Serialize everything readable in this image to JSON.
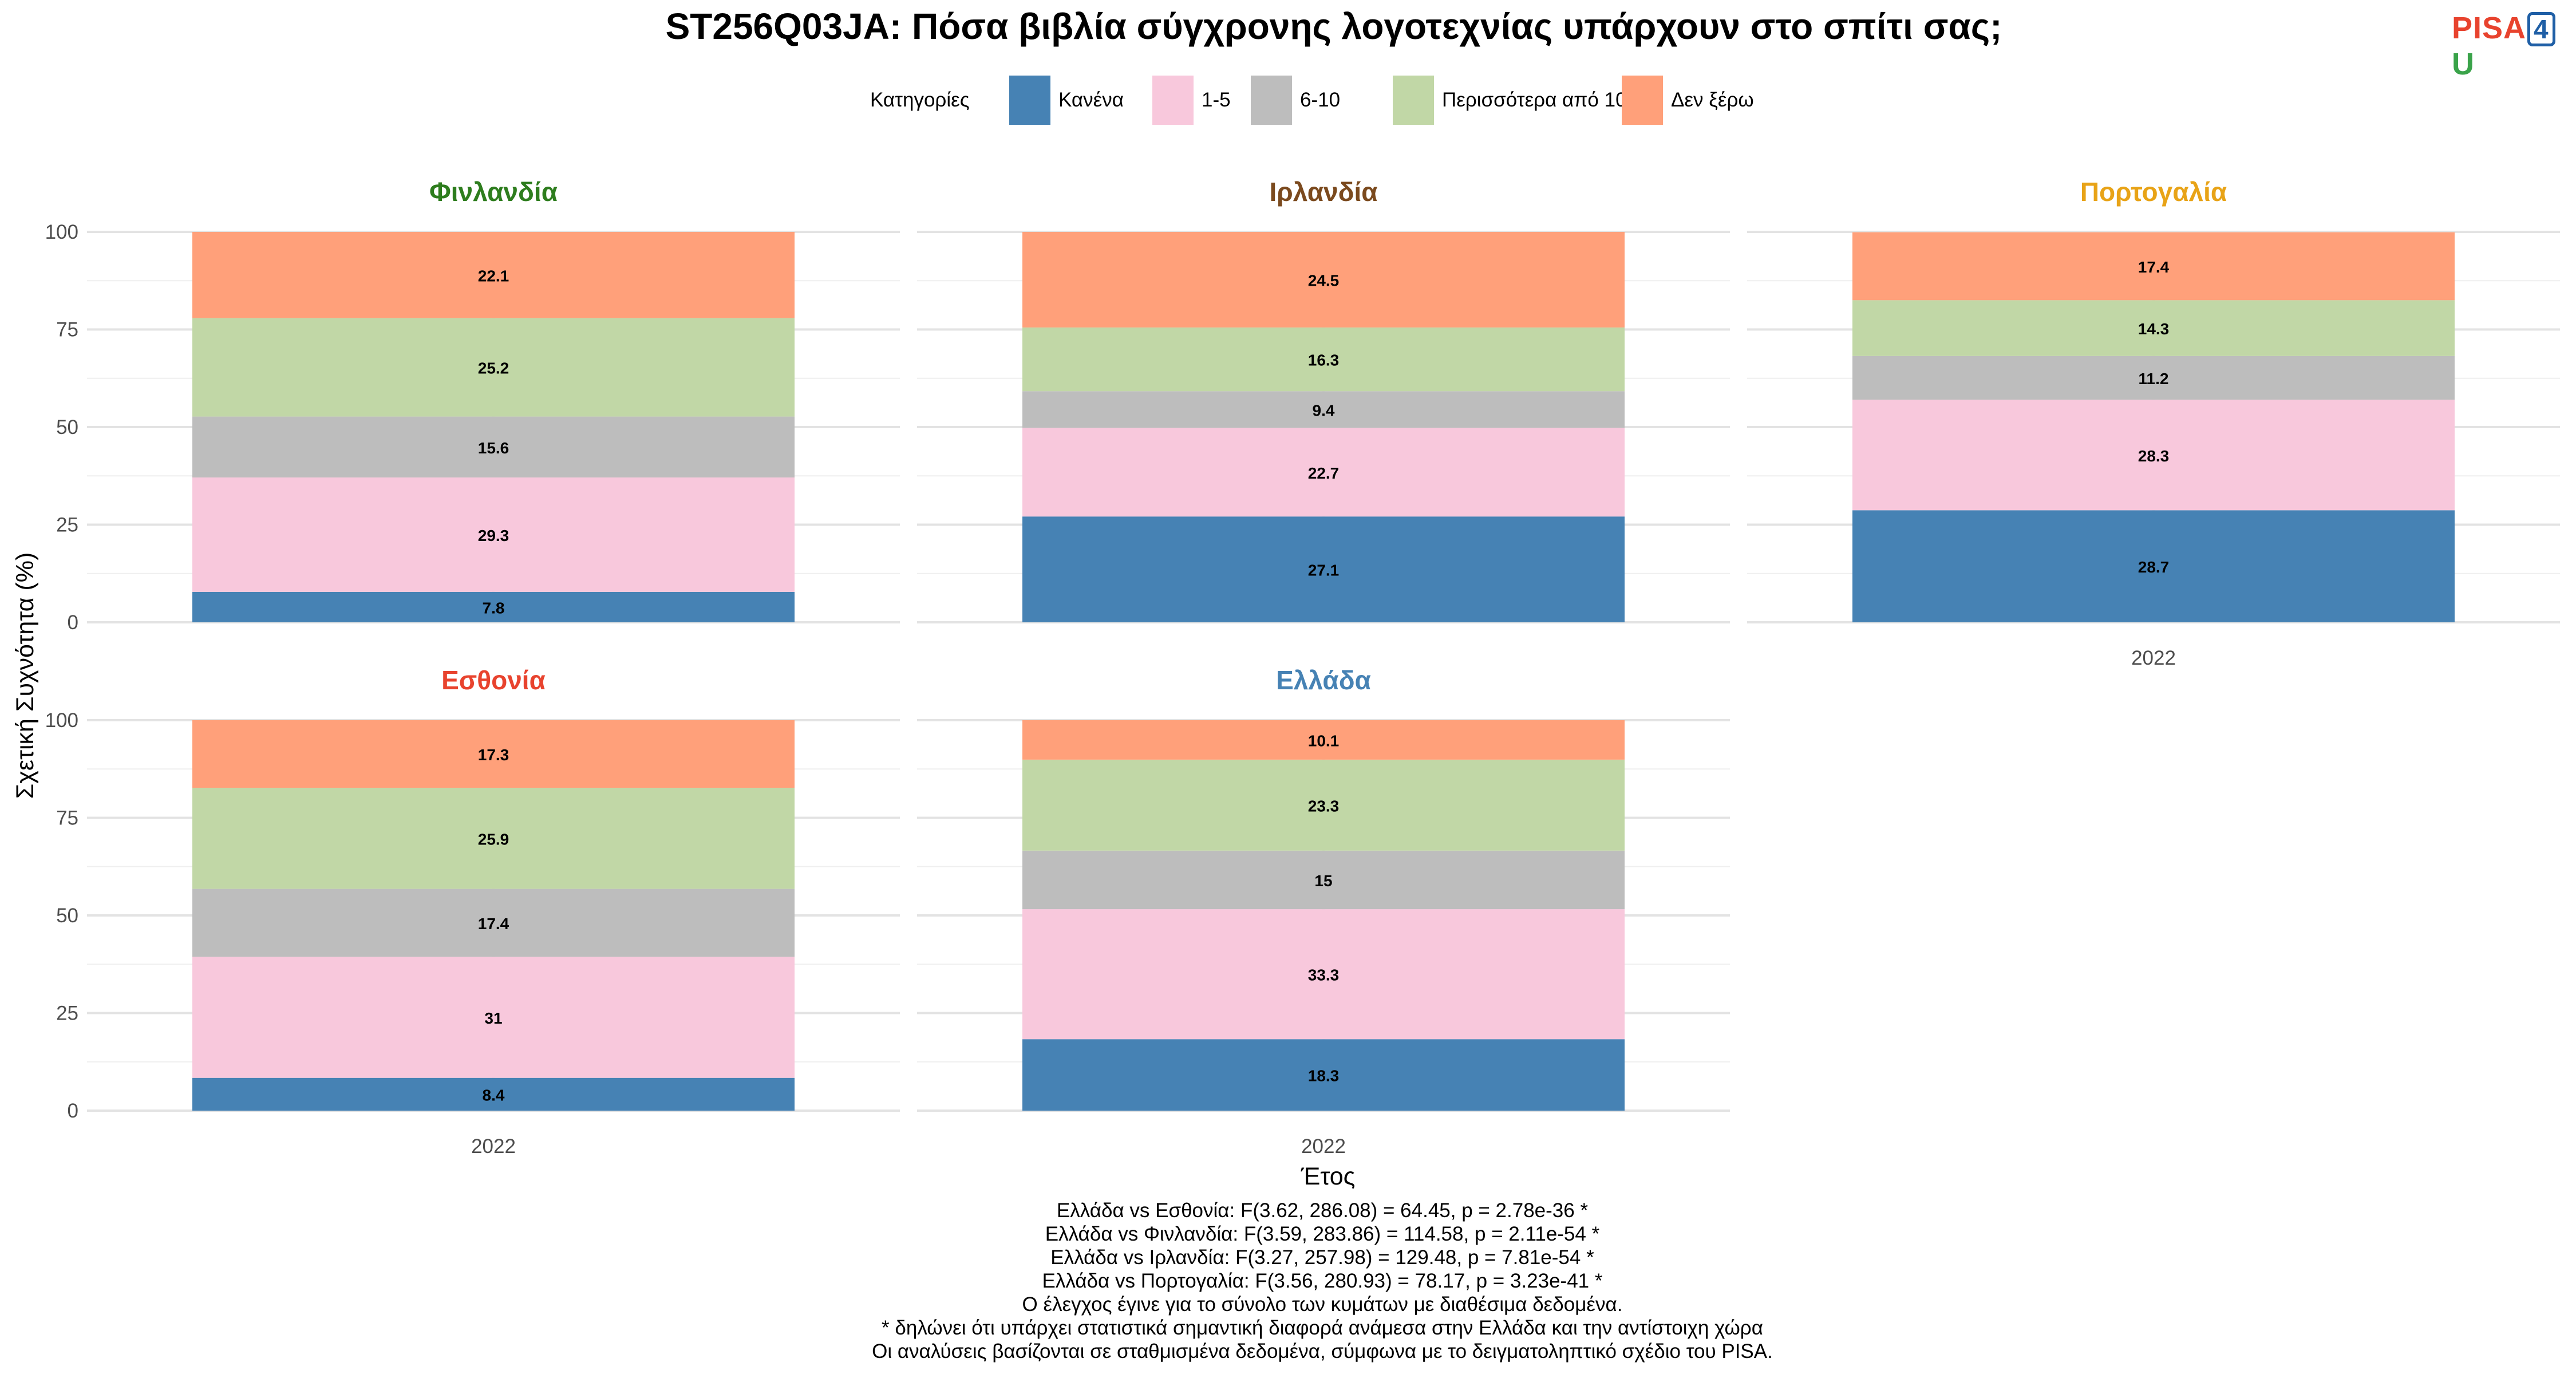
{
  "title": "ST256Q03JA: Πόσα βιβλία σύγχρονης λογοτεχνίας υπάρχουν στο σπίτι σας;",
  "logo": {
    "part1": "PISA",
    "part2": "4",
    "part3": "U"
  },
  "legend": {
    "title": "Κατηγορίες",
    "items": [
      {
        "label": "Κανένα",
        "color": "#4682b4"
      },
      {
        "label": "1-5",
        "color": "#f8c8dc"
      },
      {
        "label": "6-10",
        "color": "#bdbdbd"
      },
      {
        "label": "Περισσότερα από 10",
        "color": "#c1d7a6"
      },
      {
        "label": "Δεν ξέρω",
        "color": "#ffa07a"
      }
    ]
  },
  "chart_data": {
    "type": "bar",
    "stacked": true,
    "title": "ST256Q03JA: Πόσα βιβλία σύγχρονης λογοτεχνίας υπάρχουν στο σπίτι σας;",
    "xlabel": "Έτος",
    "ylabel": "Σχετική Συχνότητα (%)",
    "ylim": [
      0,
      100
    ],
    "yticks": [
      0,
      25,
      50,
      75,
      100
    ],
    "legend_position": "top",
    "grid": true,
    "categories": [
      "Κανένα",
      "1-5",
      "6-10",
      "Περισσότερα από 10",
      "Δεν ξέρω"
    ],
    "panels": [
      {
        "name": "Φινλανδία",
        "color": "#2e7d1e",
        "x": "2022",
        "values": [
          7.8,
          29.3,
          15.6,
          25.2,
          22.1
        ]
      },
      {
        "name": "Ιρλανδία",
        "color": "#7b4a1e",
        "x": "2022",
        "values": [
          27.1,
          22.7,
          9.4,
          16.3,
          24.5
        ]
      },
      {
        "name": "Πορτογαλία",
        "color": "#e8a317",
        "x": "2022",
        "values": [
          28.7,
          28.3,
          11.2,
          14.3,
          17.4
        ]
      },
      {
        "name": "Εσθονία",
        "color": "#e8432e",
        "x": "2022",
        "values": [
          8.4,
          31,
          17.4,
          25.9,
          17.3
        ]
      },
      {
        "name": "Ελλάδα",
        "color": "#4682b4",
        "x": "2022",
        "values": [
          18.3,
          33.3,
          15,
          23.3,
          10.1
        ]
      }
    ]
  },
  "notes": [
    "Ελλάδα vs Εσθονία: F(3.62, 286.08) = 64.45, p = 2.78e-36 *",
    "Ελλάδα vs Φινλανδία: F(3.59, 283.86) = 114.58, p = 2.11e-54 *",
    "Ελλάδα vs Ιρλανδία: F(3.27, 257.98) = 129.48, p = 7.81e-54 *",
    "Ελλάδα vs Πορτογαλία: F(3.56, 280.93) = 78.17, p = 3.23e-41 *",
    "Ο έλεγχος έγινε για το σύνολο των κυμάτων με διαθέσιμα δεδομένα.",
    "* δηλώνει ότι υπάρχει στατιστικά σημαντική διαφορά ανάμεσα στην Ελλάδα και την αντίστοιχη χώρα",
    "Οι αναλύσεις βασίζονται σε σταθμισμένα δεδομένα, σύμφωνα με το δειγματοληπτικό σχέδιο του PISA."
  ]
}
